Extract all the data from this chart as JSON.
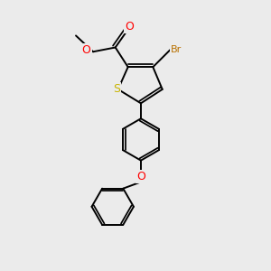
{
  "bg_color": "#EBEBEB",
  "bond_color": "#000000",
  "bond_width": 1.4,
  "atom_colors": {
    "S": "#C8B400",
    "O": "#FF0000",
    "Br": "#B87000"
  },
  "font_size": 8.5
}
